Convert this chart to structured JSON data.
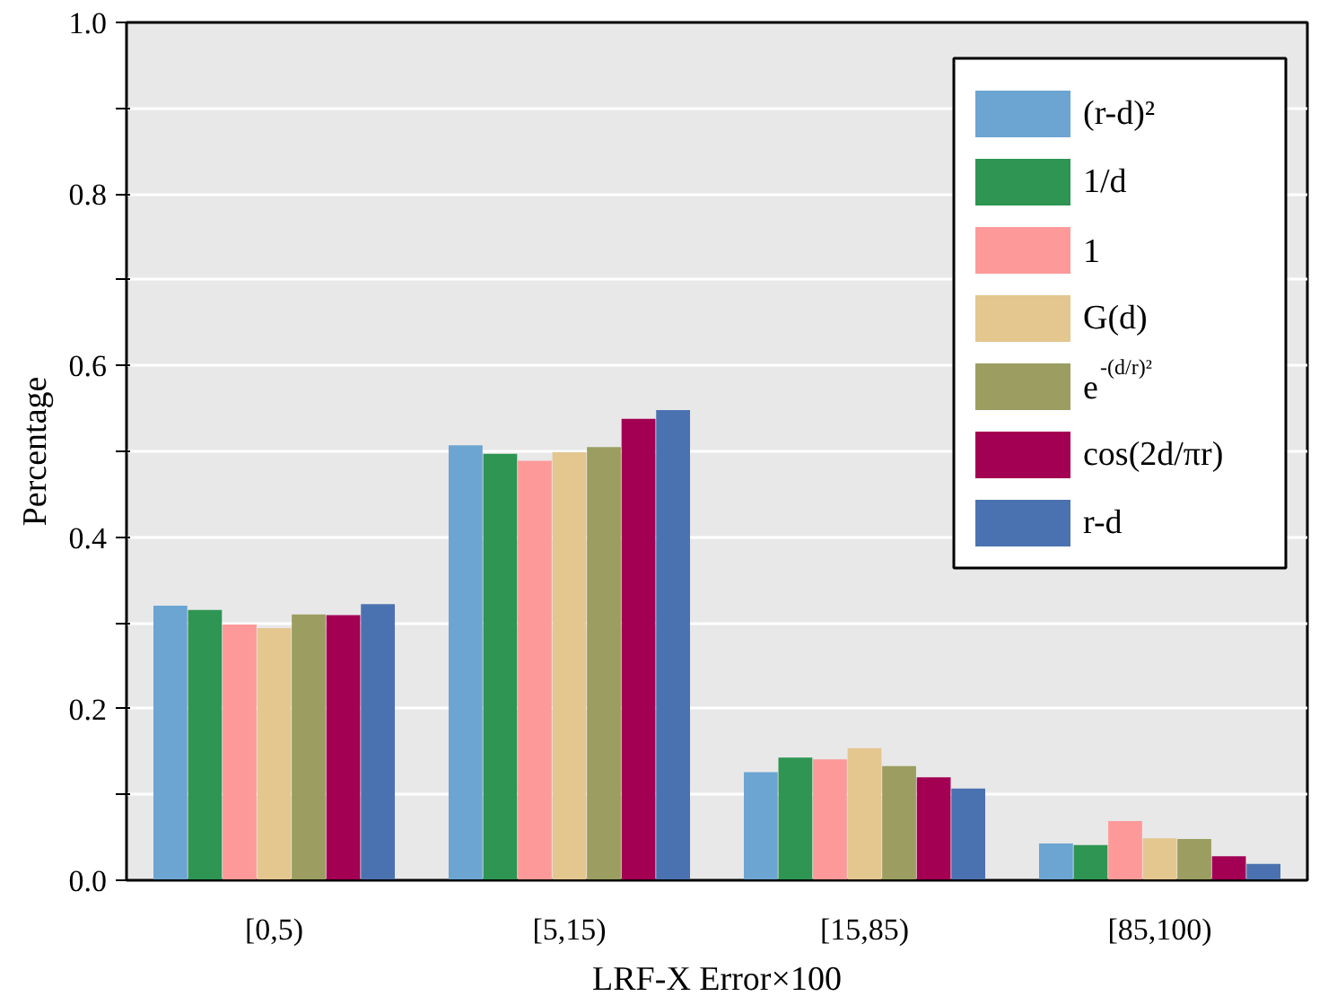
{
  "chart_data": {
    "type": "bar",
    "xlabel": "LRF-X Error×100",
    "ylabel": "Percentage",
    "categories": [
      "[0,5)",
      "[5,15)",
      "[15,85)",
      "[85,100)"
    ],
    "series": [
      {
        "name": "(r-d)²",
        "color": "#6ca4d2",
        "values": [
          0.32,
          0.507,
          0.126,
          0.043
        ]
      },
      {
        "name": "1/d",
        "color": "#2e9553",
        "values": [
          0.315,
          0.497,
          0.143,
          0.041
        ]
      },
      {
        "name": "1",
        "color": "#fd9a99",
        "values": [
          0.298,
          0.489,
          0.141,
          0.069
        ]
      },
      {
        "name": "G(d)",
        "color": "#e4c68f",
        "values": [
          0.294,
          0.499,
          0.154,
          0.049
        ]
      },
      {
        "name": "e$^{-(d/r)²}$",
        "color": "#9b9e60",
        "values": [
          0.31,
          0.505,
          0.133,
          0.048
        ]
      },
      {
        "name": "cos(2d/πr)",
        "color": "#a30054",
        "values": [
          0.309,
          0.538,
          0.12,
          0.028
        ]
      },
      {
        "name": "r-d",
        "color": "#4b72b0",
        "values": [
          0.322,
          0.548,
          0.107,
          0.019
        ]
      }
    ],
    "ylim": [
      0,
      1.0
    ],
    "yticks": [
      {
        "value": 0,
        "label": "0.0"
      },
      {
        "value": 0.1,
        "label": null
      },
      {
        "value": 0.2,
        "label": "0.2"
      },
      {
        "value": 0.3,
        "label": null
      },
      {
        "value": 0.4,
        "label": "0.4"
      },
      {
        "value": 0.5,
        "label": null
      },
      {
        "value": 0.6,
        "label": "0.6"
      },
      {
        "value": 0.7,
        "label": null
      },
      {
        "value": 0.8,
        "label": "0.8"
      },
      {
        "value": 0.9,
        "label": null
      },
      {
        "value": 1,
        "label": "1.0"
      }
    ],
    "grid": "y",
    "legend": "top right"
  }
}
